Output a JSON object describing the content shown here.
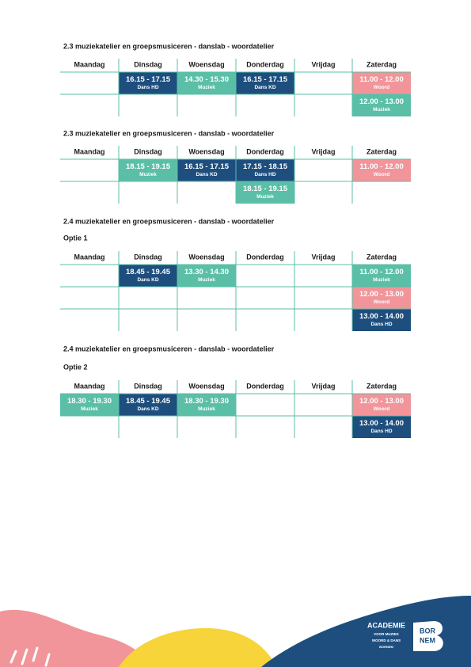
{
  "sections": [
    {
      "title": "2.3 muziekatelier en groepsmusiceren - danslab - woordatelier",
      "days": [
        "Maandag",
        "Dinsdag",
        "Woensdag",
        "Donderdag",
        "Vrijdag",
        "Zaterdag"
      ],
      "rows": [
        [
          null,
          {
            "time": "16.15 - 17.15",
            "label": "Dans HD",
            "color": "#1d4e7e"
          },
          {
            "time": "14.30 - 15.30",
            "label": "Muziek",
            "color": "#5bbfa7"
          },
          {
            "time": "16.15 - 17.15",
            "label": "Dans KD",
            "color": "#1d4e7e"
          },
          null,
          {
            "time": "11.00 - 12.00",
            "label": "Woord",
            "color": "#f1959a"
          }
        ],
        [
          null,
          null,
          null,
          null,
          null,
          {
            "time": "12.00 - 13.00",
            "label": "Muziek",
            "color": "#5bbfa7"
          }
        ]
      ]
    },
    {
      "title": "2.3 muziekatelier en groepsmusiceren - danslab - woordatelier",
      "days": [
        "Maandag",
        "Dinsdag",
        "Woensdag",
        "Donderdag",
        "Vrijdag",
        "Zaterdag"
      ],
      "rows": [
        [
          null,
          {
            "time": "18.15 - 19.15",
            "label": "Muziek",
            "color": "#5bbfa7"
          },
          {
            "time": "16.15 - 17.15",
            "label": "Dans KD",
            "color": "#1d4e7e"
          },
          {
            "time": "17.15 - 18.15",
            "label": "Dans HD",
            "color": "#1d4e7e"
          },
          null,
          {
            "time": "11.00 - 12.00",
            "label": "Woord",
            "color": "#f1959a"
          }
        ],
        [
          null,
          null,
          null,
          {
            "time": "18.15 - 19.15",
            "label": "Muziek",
            "color": "#5bbfa7"
          },
          null,
          null
        ]
      ]
    },
    {
      "title": "2.4 muziekatelier en groepsmusiceren - danslab - woordatelier",
      "subtitle": "Optie 1",
      "days": [
        "Maandag",
        "Dinsdag",
        "Woensdag",
        "Donderdag",
        "Vrijdag",
        "Zaterdag"
      ],
      "rows": [
        [
          null,
          {
            "time": "18.45 - 19.45",
            "label": "Dans KD",
            "color": "#1d4e7e"
          },
          {
            "time": "13.30 - 14.30",
            "label": "Muziek",
            "color": "#5bbfa7"
          },
          null,
          null,
          {
            "time": "11.00 - 12.00",
            "label": "Muziek",
            "color": "#5bbfa7"
          }
        ],
        [
          null,
          null,
          null,
          null,
          null,
          {
            "time": "12.00 - 13.00",
            "label": "Woord",
            "color": "#f1959a"
          }
        ],
        [
          null,
          null,
          null,
          null,
          null,
          {
            "time": "13.00 - 14.00",
            "label": "Dans HD",
            "color": "#1d4e7e"
          }
        ]
      ]
    },
    {
      "title": "2.4 muziekatelier en groepsmusiceren - danslab - woordatelier",
      "subtitle": "Optie 2",
      "days": [
        "Maandag",
        "Dinsdag",
        "Woensdag",
        "Donderdag",
        "Vrijdag",
        "Zaterdag"
      ],
      "rows": [
        [
          {
            "time": "18.30 - 19.30",
            "label": "Muziek",
            "color": "#5bbfa7"
          },
          {
            "time": "18.45 - 19.45",
            "label": "Dans KD",
            "color": "#1d4e7e"
          },
          {
            "time": "18.30 - 19.30",
            "label": "Muziek",
            "color": "#5bbfa7"
          },
          null,
          null,
          {
            "time": "12.00 - 13.00",
            "label": "Woord",
            "color": "#f1959a"
          }
        ],
        [
          null,
          null,
          null,
          null,
          null,
          {
            "time": "13.00 - 14.00",
            "label": "Dans HD",
            "color": "#1d4e7e"
          }
        ]
      ]
    }
  ],
  "footer": {
    "academy_logo": [
      "ACADEMIE",
      "VOOR MUZIEK",
      "WOORD & DANS",
      "BORNEM"
    ],
    "town_logo": [
      "BOR",
      "NEM"
    ]
  }
}
